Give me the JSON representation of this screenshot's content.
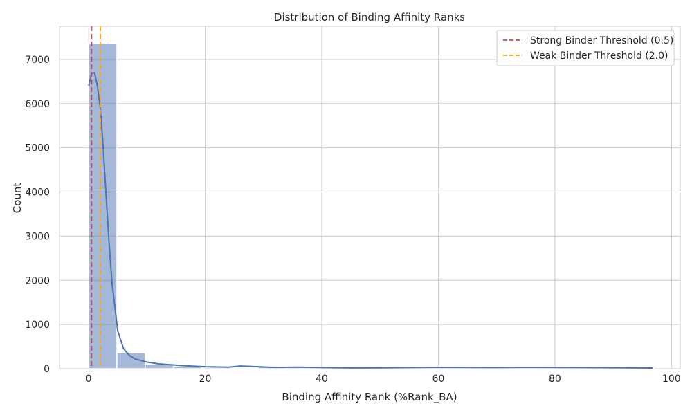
{
  "colors": {
    "background": "#ffffff",
    "plot_background": "#ffffff",
    "grid": "#cccccc",
    "bar_fill": "#4c72b0",
    "kde_line": "#4c72b0",
    "strong_threshold": "#c44e52",
    "weak_threshold": "#ffa500"
  },
  "chart_data": {
    "type": "bar",
    "subtype": "histogram-with-kde",
    "title": "Distribution of Binding Affinity Ranks",
    "xlabel": "Binding Affinity Rank (%Rank_BA)",
    "ylabel": "Count",
    "xlim": [
      -5,
      101.5
    ],
    "ylim": [
      0,
      7750
    ],
    "xticks": [
      0,
      20,
      40,
      60,
      80,
      100
    ],
    "yticks": [
      0,
      1000,
      2000,
      3000,
      4000,
      5000,
      6000,
      7000
    ],
    "grid": true,
    "legend_position": "top-right",
    "bin_edges": [
      0,
      4.85,
      9.7,
      14.55,
      19.4,
      24.25,
      29.1,
      33.95,
      38.8,
      43.65,
      48.5,
      53.35,
      58.2,
      63.05,
      67.9,
      72.75,
      77.6,
      82.45,
      87.3,
      92.15,
      97.0
    ],
    "counts": [
      7370,
      360,
      100,
      45,
      30,
      25,
      55,
      30,
      25,
      15,
      10,
      12,
      20,
      18,
      15,
      15,
      20,
      15,
      15,
      10
    ],
    "kde": {
      "x": [
        0,
        0.5,
        1,
        1.5,
        2,
        2.5,
        3,
        3.5,
        4,
        5,
        6,
        7,
        8,
        10,
        12,
        14,
        16,
        20,
        24,
        26,
        28,
        32,
        36,
        40,
        45,
        50,
        55,
        60,
        65,
        70,
        75,
        80,
        85,
        90,
        96.8
      ],
      "y": [
        6400,
        6680,
        6700,
        6400,
        5900,
        5000,
        3900,
        2850,
        1950,
        850,
        450,
        300,
        220,
        150,
        110,
        90,
        70,
        45,
        35,
        60,
        50,
        30,
        35,
        25,
        18,
        20,
        25,
        30,
        28,
        25,
        30,
        28,
        25,
        22,
        15
      ]
    },
    "thresholds": [
      {
        "name": "Strong Binder Threshold (0.5)",
        "x": 0.5,
        "color": "#c44e52"
      },
      {
        "name": "Weak Binder Threshold (2.0)",
        "x": 2.0,
        "color": "#ffa500"
      }
    ]
  }
}
